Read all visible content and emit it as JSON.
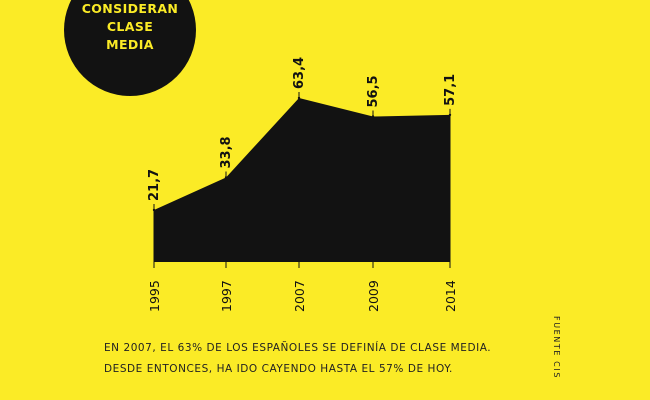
{
  "badge": {
    "lines": [
      "CONSIDERAN",
      "CLASE",
      "MEDIA"
    ]
  },
  "chart_data": {
    "type": "area",
    "x": [
      "1995",
      "1997",
      "2007",
      "2009",
      "2014"
    ],
    "values": [
      21.7,
      33.8,
      63.4,
      56.5,
      57.1
    ],
    "value_labels": [
      "21,7",
      "33,8",
      "63,4",
      "56,5",
      "57,1"
    ],
    "title": "",
    "xlabel": "",
    "ylabel": "",
    "grid": false,
    "legend": "none",
    "fill_color": "#121212"
  },
  "caption": {
    "line1": "EN 2007, EL 63% DE LOS ESPAÑOLES SE DEFINÍA DE CLASE MEDIA.",
    "line2": "DESDE ENTONCES, HA IDO CAYENDO HASTA EL 57% DE HOY."
  },
  "source": "FUENTE CIS",
  "colors": {
    "background": "#fbeb26",
    "ink": "#121212"
  }
}
